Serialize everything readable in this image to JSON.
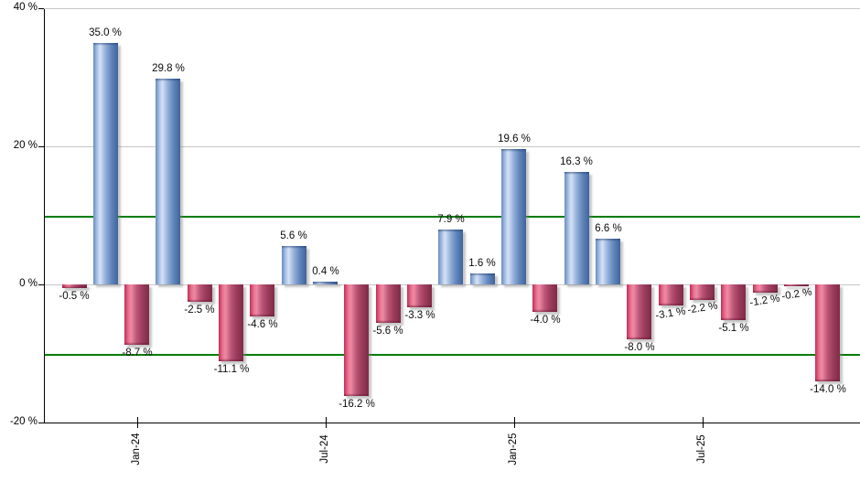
{
  "chart_data": {
    "type": "bar",
    "title": "",
    "xlabel": "",
    "ylabel": "",
    "ylim": [
      -20,
      40
    ],
    "grid": true,
    "legend": "none",
    "bars": [
      {
        "label": "-0.5 %",
        "value": -0.5
      },
      {
        "label": "35.0 %",
        "value": 35.0
      },
      {
        "label": "-8.7 %",
        "value": -8.7
      },
      {
        "label": "29.8 %",
        "value": 29.8
      },
      {
        "label": "-2.5 %",
        "value": -2.5
      },
      {
        "label": "-11.1 %",
        "value": -11.1
      },
      {
        "label": "-4.6 %",
        "value": -4.6
      },
      {
        "label": "5.6 %",
        "value": 5.6
      },
      {
        "label": "0.4 %",
        "value": 0.4
      },
      {
        "label": "-16.2 %",
        "value": -16.2
      },
      {
        "label": "-5.6 %",
        "value": -5.6
      },
      {
        "label": "-3.3 %",
        "value": -3.3
      },
      {
        "label": "7.9 %",
        "value": 7.9
      },
      {
        "label": "1.6 %",
        "value": 1.6
      },
      {
        "label": "19.6 %",
        "value": 19.6
      },
      {
        "label": "-4.0 %",
        "value": -4.0
      },
      {
        "label": "16.3 %",
        "value": 16.3
      },
      {
        "label": "6.6 %",
        "value": 6.6
      },
      {
        "label": "-8.0 %",
        "value": -8.0
      },
      {
        "label": "-3.1 %",
        "value": -3.1,
        "tilted": true
      },
      {
        "label": "-2.2 %",
        "value": -2.2,
        "tilted": true
      },
      {
        "label": "-5.1 %",
        "value": -5.1
      },
      {
        "label": "-1.2 %",
        "value": -1.2,
        "tilted": true
      },
      {
        "label": "-0.2 %",
        "value": -0.2,
        "tilted": true
      },
      {
        "label": "-14.0 %",
        "value": -14.0
      }
    ],
    "x_ticks": [
      {
        "label": "Jan-24",
        "bar_index": 2
      },
      {
        "label": "Jul-24",
        "bar_index": 8
      },
      {
        "label": "Jan-25",
        "bar_index": 14
      },
      {
        "label": "Jul-25",
        "bar_index": 20
      }
    ],
    "y_ticks": [
      {
        "label": "40 %",
        "value": 40
      },
      {
        "label": "20 %",
        "value": 20
      },
      {
        "label": "0 %",
        "value": 0
      },
      {
        "label": "-20 %",
        "value": -20
      }
    ],
    "reference_lines": {
      "values": [
        10,
        -10
      ],
      "color": "#007d00"
    },
    "colors": {
      "positive_bar": "#6a8cc0",
      "positive_bar_highlight": "#d5e2f6",
      "positive_bar_edge": "#3e649c",
      "negative_bar": "#bd2f57",
      "negative_bar_highlight": "#ef8aa4",
      "negative_bar_edge": "#7f2b47",
      "gridline": "#c6c6c6",
      "axis": "#000000",
      "text": "#0b0b0b",
      "background": "#ffffff"
    }
  }
}
